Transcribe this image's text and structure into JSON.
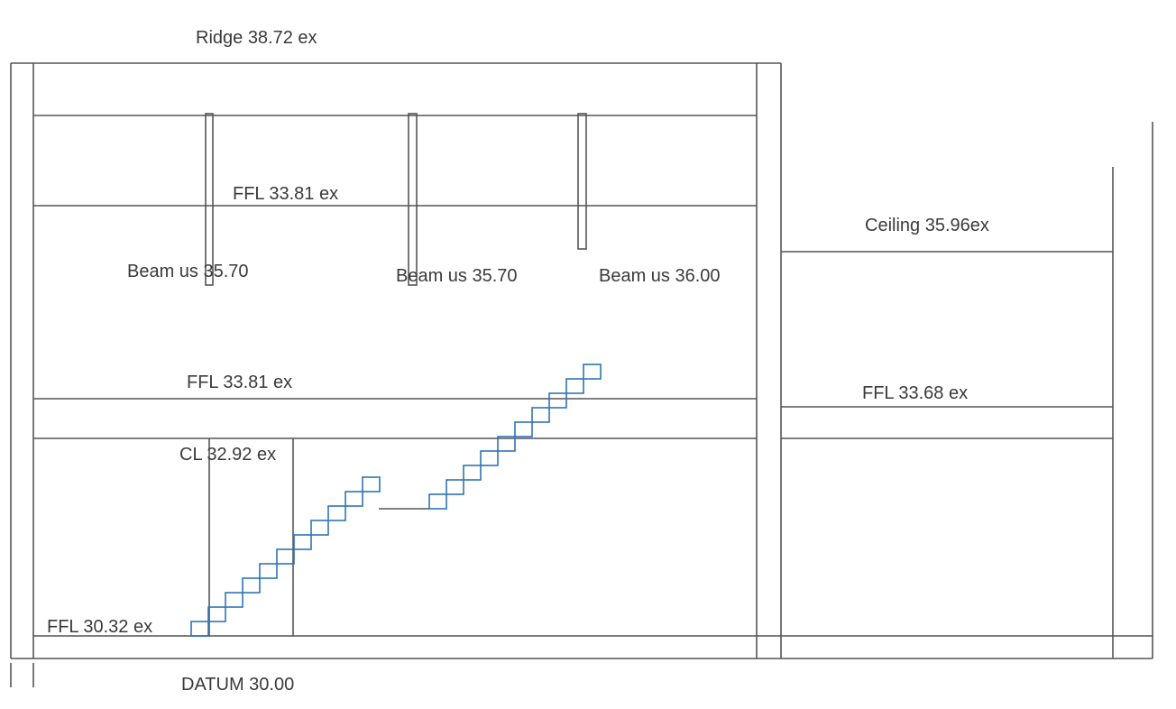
{
  "labels": {
    "ridge": "Ridge 38.72 ex",
    "ffl_upper": "FFL 33.81 ex",
    "beam_1": "Beam us 35.70",
    "beam_2": "Beam us 35.70",
    "beam_3": "Beam us 36.00",
    "ceiling": "Ceiling 35.96ex",
    "ffl_mid": "FFL 33.81 ex",
    "ffl_right": "FFL 33.68 ex",
    "cl": "CL 32.92 ex",
    "ffl_lower": "FFL 30.32 ex",
    "datum": "DATUM 30.00"
  },
  "colors": {
    "line": "#555555",
    "stair": "#2e75b6",
    "text": "#3a3a3a"
  }
}
